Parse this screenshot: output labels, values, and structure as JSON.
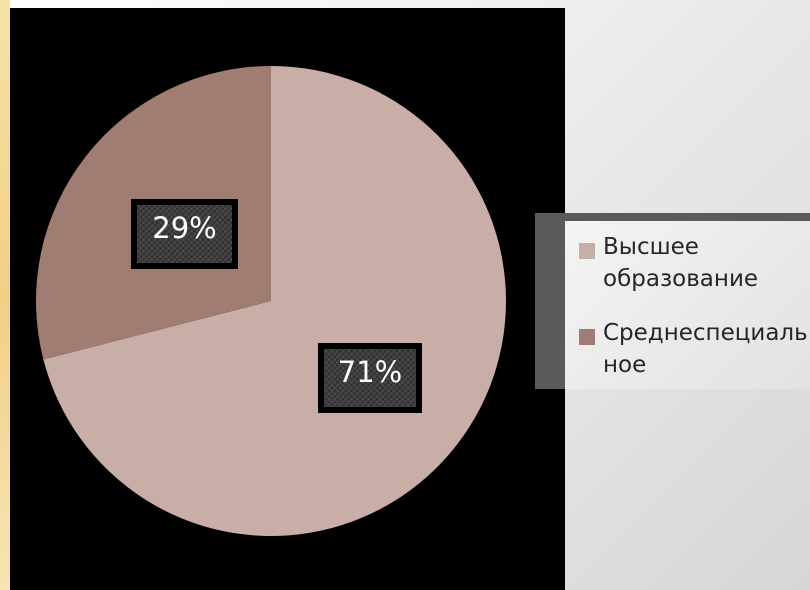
{
  "chart_data": {
    "type": "pie",
    "slices": [
      {
        "label": "Высшее образование",
        "value": 71,
        "display": "71%",
        "color": "#c9aea8"
      },
      {
        "label": "Среднеспециальное",
        "value": 29,
        "display": "29%",
        "color": "#a07d73"
      }
    ],
    "legend": {
      "placement": "right",
      "items": [
        {
          "label": "Высшее\nобразование",
          "color": "#c9aea8"
        },
        {
          "label": "Среднеспециаль\nное",
          "color": "#a07d73"
        }
      ]
    }
  },
  "colors": {
    "plot_background": "#000000",
    "accent_strip": "#f3cf84"
  }
}
